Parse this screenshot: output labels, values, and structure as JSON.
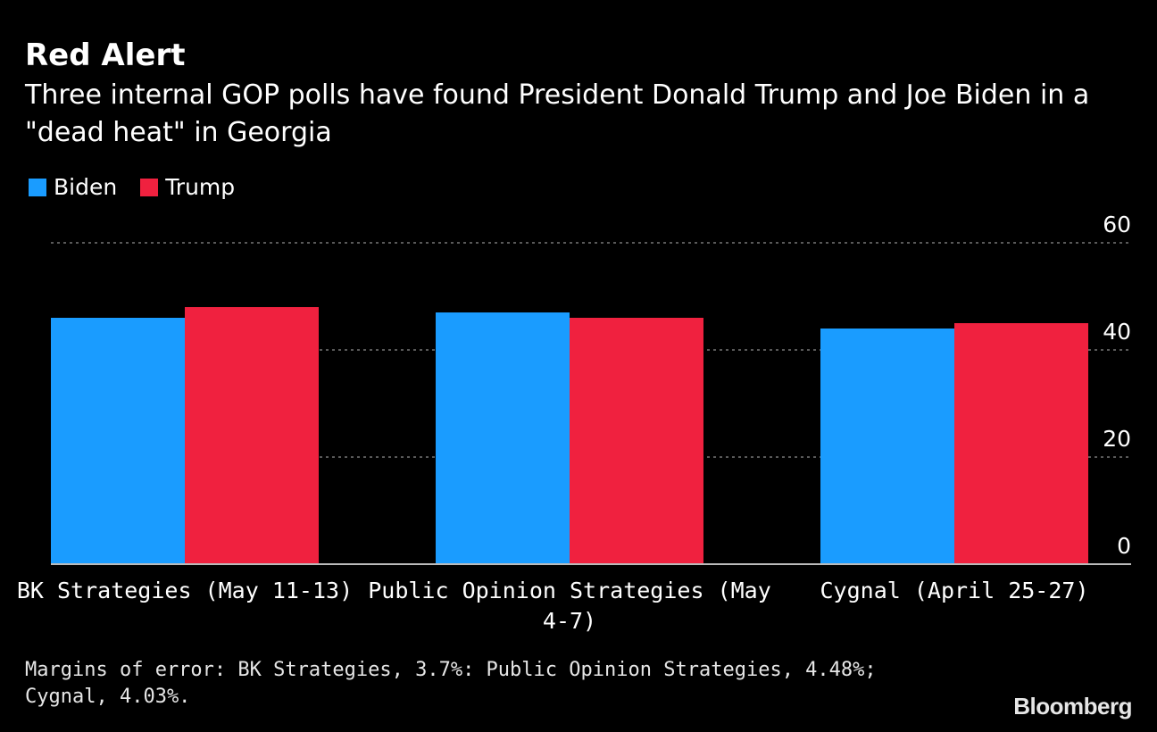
{
  "chart_data": {
    "type": "bar",
    "title": "Red Alert",
    "subtitle": "Three internal GOP polls have found President Donald Trump and Joe Biden in a \"dead heat\" in Georgia",
    "categories": [
      [
        "BK Strategies (May 11-13)"
      ],
      [
        "Public Opinion Strategies (May",
        "4-7)"
      ],
      [
        "Cygnal (April 25-27)"
      ]
    ],
    "series": [
      {
        "name": "Biden",
        "color": "#1a9cff",
        "values": [
          46,
          47,
          44
        ]
      },
      {
        "name": "Trump",
        "color": "#f0213f",
        "values": [
          48,
          46,
          45
        ]
      }
    ],
    "ylim": [
      0,
      60
    ],
    "yticks": [
      0,
      20,
      40,
      60
    ],
    "grid": true,
    "legend": "top-left",
    "y_axis_side": "right",
    "xlabel": "",
    "ylabel": ""
  },
  "footnote": "Margins of error: BK Strategies, 3.7%: Public Opinion Strategies, 4.48%; Cygnal, 4.03%.",
  "source": "Bloomberg",
  "colors": {
    "background": "#000000",
    "text": "#ffffff",
    "grid": "#777777",
    "axis": "#bbbbbb"
  }
}
